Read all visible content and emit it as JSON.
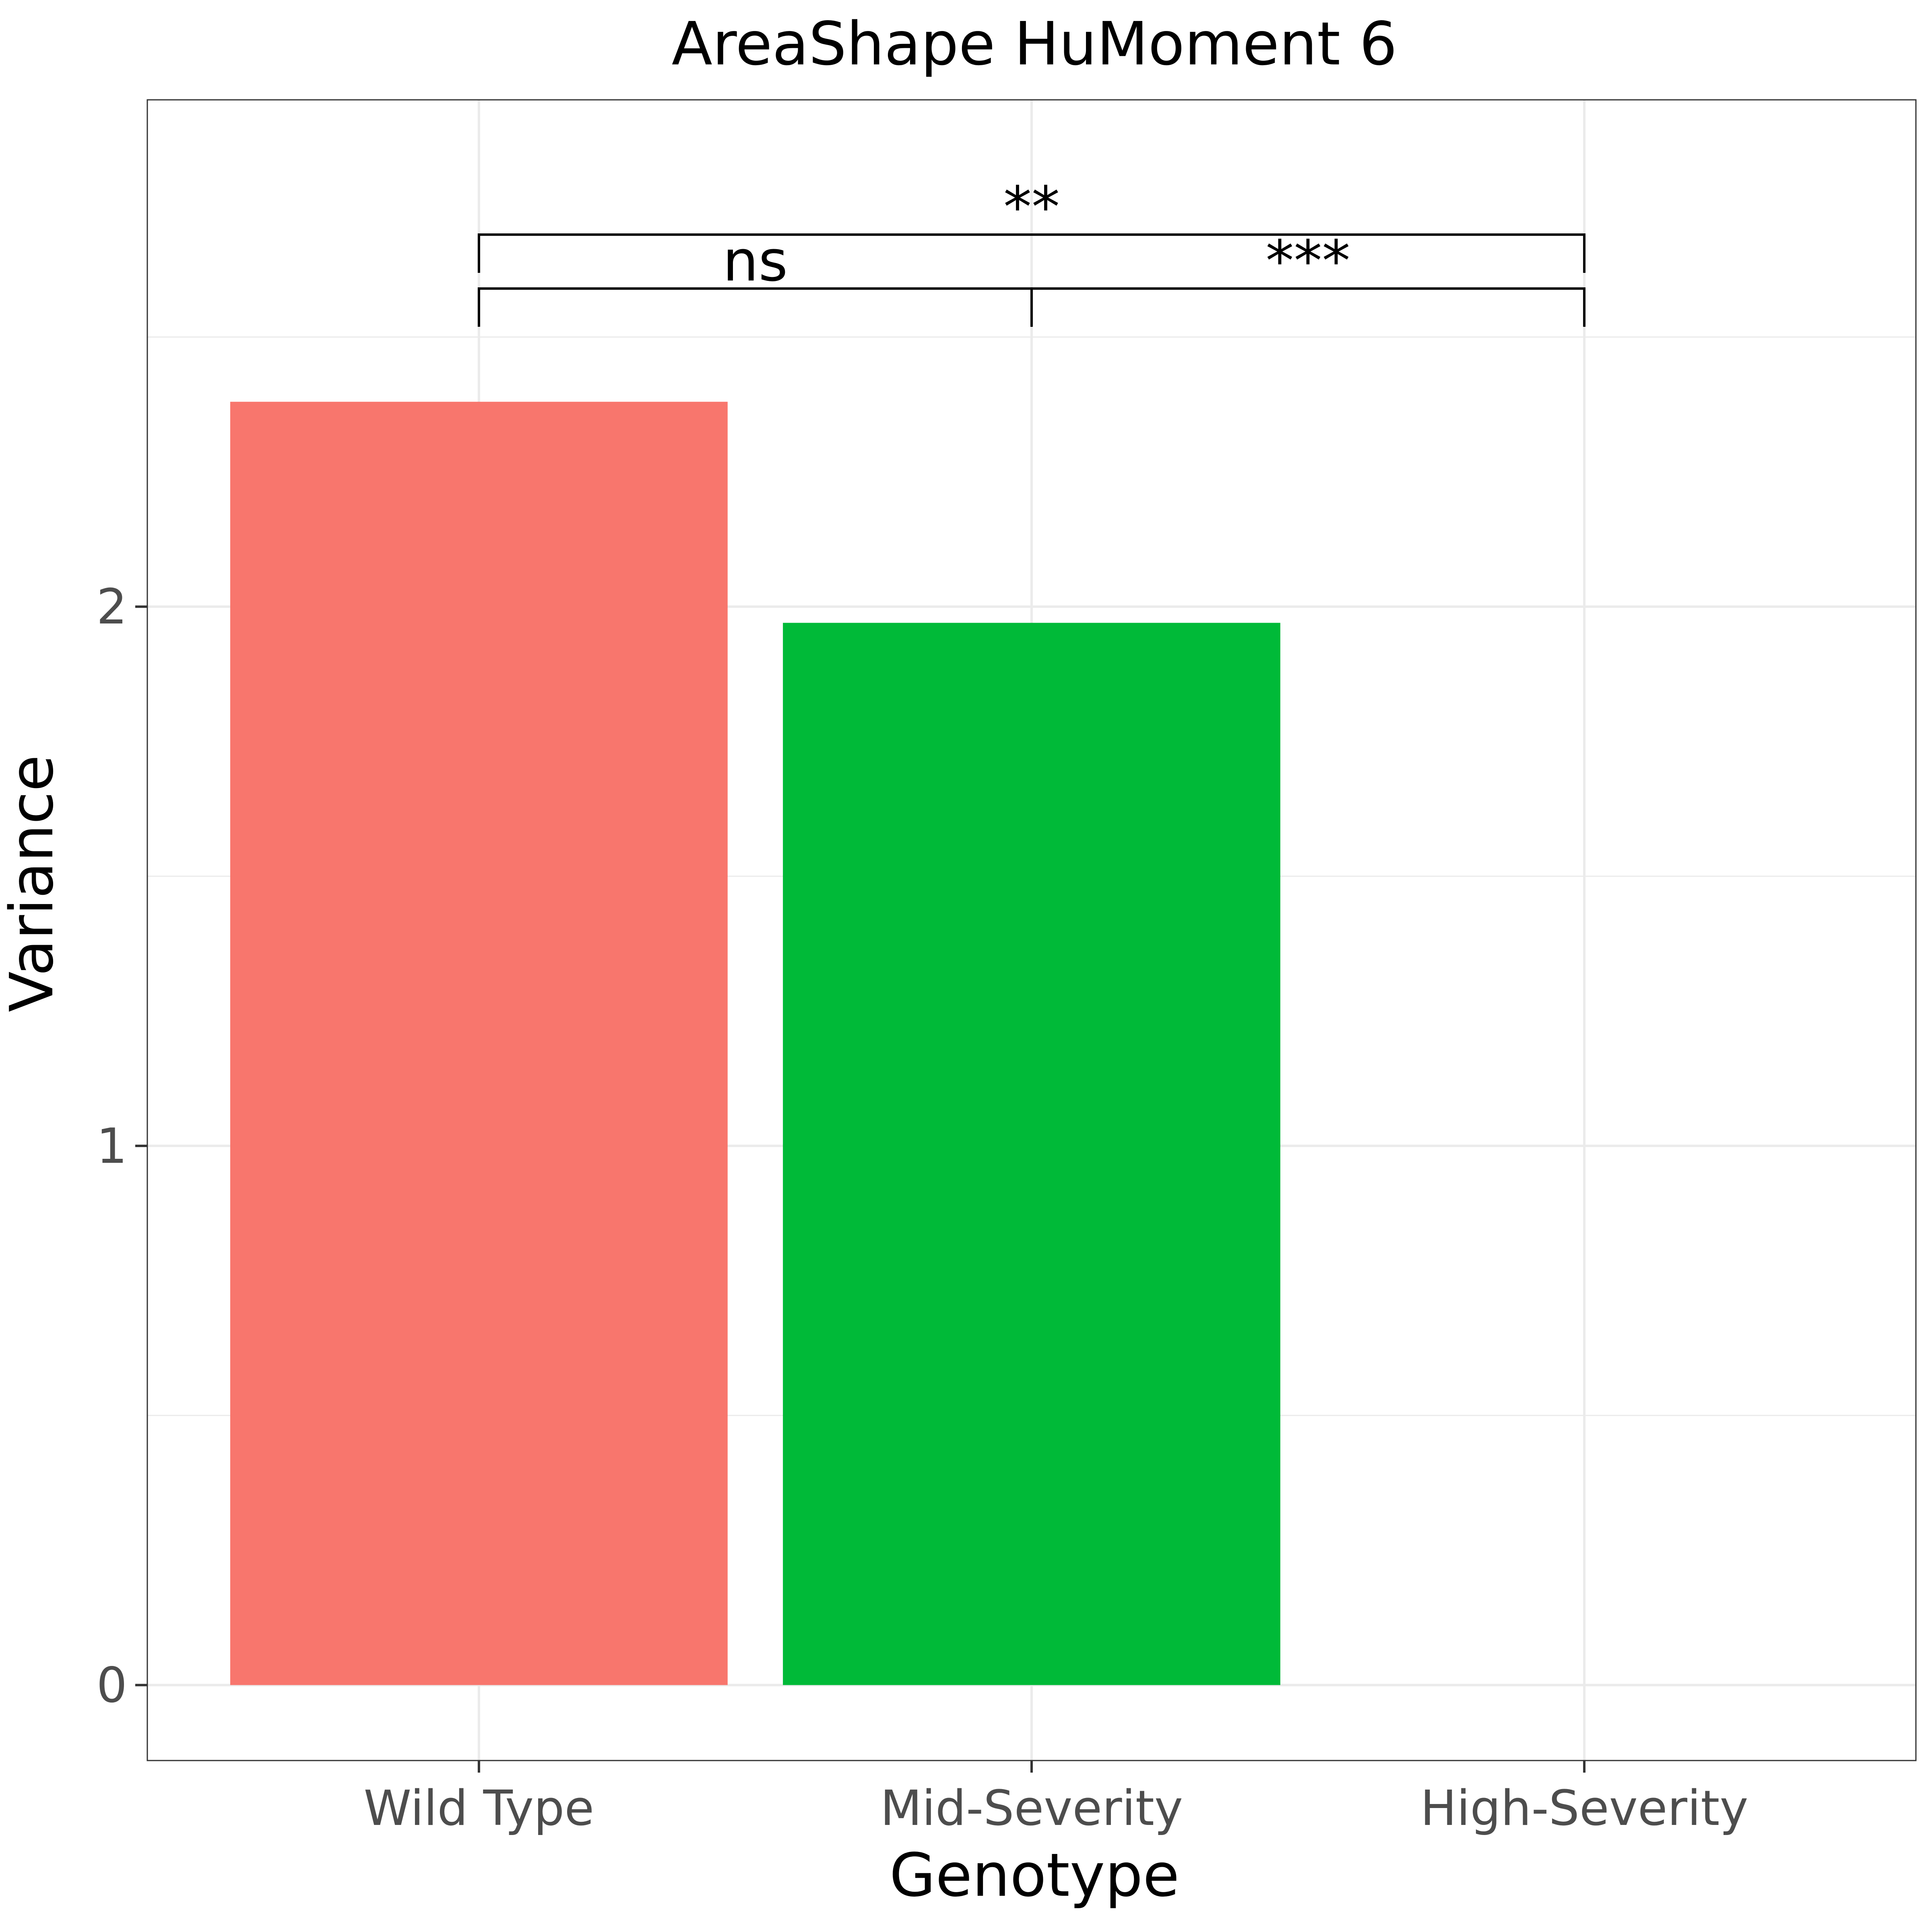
{
  "chart_data": {
    "type": "bar",
    "title": "AreaShape HuMoment 6",
    "xlabel": "Genotype",
    "ylabel": "Variance",
    "categories": [
      "Wild Type",
      "Mid-Severity",
      "High-Severity"
    ],
    "values": [
      2.38,
      1.97,
      0
    ],
    "colors": [
      "#F8766D",
      "#00BA38",
      "#619CFF"
    ],
    "ylim": [
      -0.14,
      2.94
    ],
    "yticks": [
      0,
      1,
      2
    ],
    "ytick_labels": [
      "0",
      "1",
      "2"
    ],
    "grid": true,
    "legend": "none",
    "annotations": [
      {
        "from": "Wild Type",
        "to": "Mid-Severity",
        "y": 2.59,
        "label": "ns"
      },
      {
        "from": "Mid-Severity",
        "to": "High-Severity",
        "y": 2.59,
        "label": "***"
      },
      {
        "from": "Wild Type",
        "to": "High-Severity",
        "y": 2.69,
        "label": "**"
      }
    ]
  }
}
